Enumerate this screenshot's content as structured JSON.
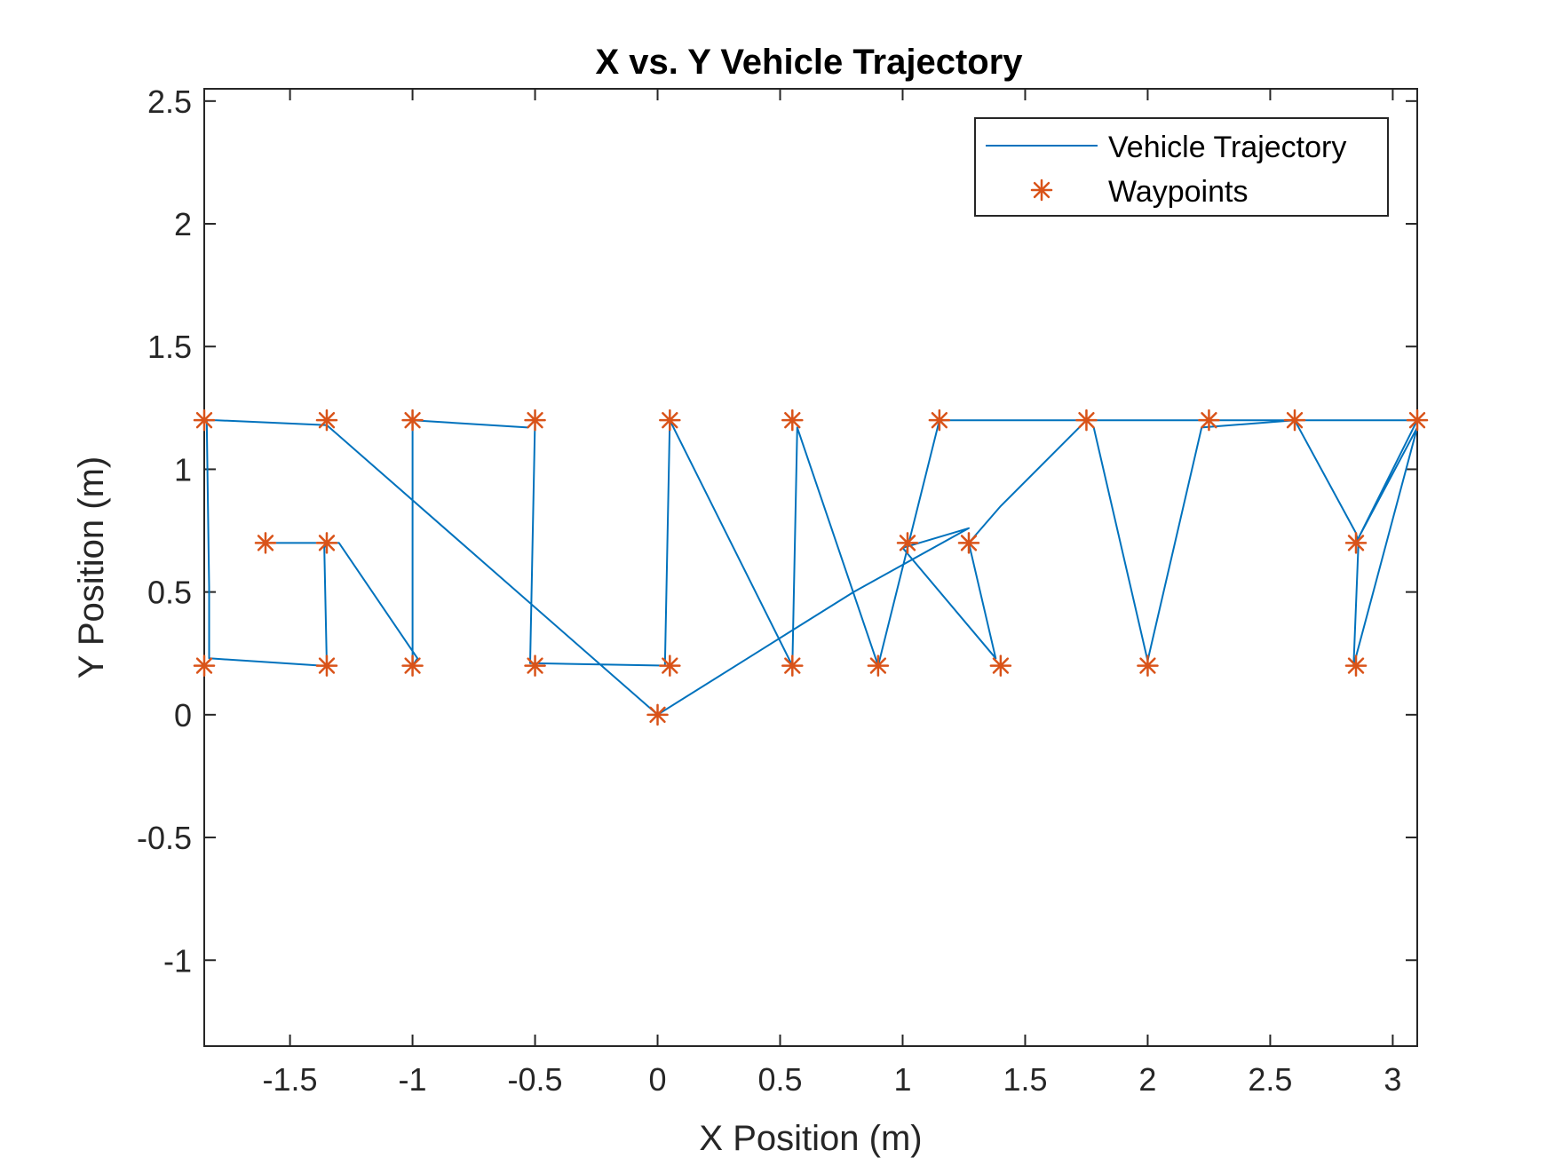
{
  "chart_data": {
    "type": "line",
    "title": "X vs. Y Vehicle Trajectory",
    "xlabel": "X Position (m)",
    "ylabel": "Y Position (m)",
    "xlim": [
      -1.85,
      3.1
    ],
    "ylim": [
      -1.35,
      2.55
    ],
    "xticks": [
      -1.5,
      -1,
      -0.5,
      0,
      0.5,
      1,
      1.5,
      2,
      2.5,
      3
    ],
    "xtick_labels": [
      "-1.5",
      "-1",
      "-0.5",
      "0",
      "0.5",
      "1",
      "1.5",
      "2",
      "2.5",
      "3"
    ],
    "yticks": [
      -1,
      -0.5,
      0,
      0.5,
      1,
      1.5,
      2,
      2.5
    ],
    "ytick_labels": [
      "-1",
      "-0.5",
      "0",
      "0.5",
      "1",
      "1.5",
      "2",
      "2.5"
    ],
    "grid": false,
    "legend_position": "top-right",
    "colors": {
      "trajectory": "#0072BD",
      "waypoints": "#D95319"
    },
    "series": [
      {
        "name": "Vehicle Trajectory",
        "style": "line",
        "x": [
          0,
          0.4,
          0.8,
          1.27,
          1.0,
          1.38,
          1.27,
          1.4,
          1.75,
          1.78,
          2.0,
          2.22,
          2.6,
          2.85,
          2.86,
          2.84,
          3.1,
          2.86,
          3.1,
          1.15,
          0.9,
          0.57,
          0.55,
          0.05,
          0.03,
          0.05,
          -0.52,
          -0.5,
          -0.53,
          -1.0,
          -1.0,
          -0.98,
          -1.3,
          -1.58,
          -1.35,
          -1.36,
          -1.35,
          -1.37,
          -1.83,
          -1.83,
          -1.84,
          -1.8,
          -1.35,
          0.0
        ],
        "y": [
          0.0,
          0.25,
          0.5,
          0.76,
          0.68,
          0.23,
          0.7,
          0.85,
          1.2,
          1.17,
          0.22,
          1.17,
          1.2,
          0.74,
          0.7,
          0.2,
          1.17,
          0.72,
          1.2,
          1.2,
          0.2,
          1.17,
          0.2,
          1.2,
          0.2,
          0.2,
          0.21,
          1.2,
          1.17,
          1.2,
          0.2,
          0.23,
          0.7,
          0.7,
          0.7,
          0.68,
          0.2,
          0.2,
          0.23,
          0.52,
          1.2,
          1.2,
          1.18,
          0.0
        ]
      },
      {
        "name": "Waypoints",
        "style": "marker",
        "x": [
          -1.85,
          -1.35,
          -1.0,
          -0.5,
          0.05,
          0.55,
          1.15,
          1.75,
          2.25,
          2.6,
          3.1,
          -1.6,
          -1.35,
          1.02,
          1.27,
          2.85,
          -1.85,
          -1.35,
          -1.0,
          -0.5,
          0.05,
          0.55,
          0.9,
          1.4,
          2.0,
          2.85,
          0.0
        ],
        "y": [
          1.2,
          1.2,
          1.2,
          1.2,
          1.2,
          1.2,
          1.2,
          1.2,
          1.2,
          1.2,
          1.2,
          0.7,
          0.7,
          0.7,
          0.7,
          0.7,
          0.2,
          0.2,
          0.2,
          0.2,
          0.2,
          0.2,
          0.2,
          0.2,
          0.2,
          0.2,
          0.0
        ]
      }
    ]
  }
}
